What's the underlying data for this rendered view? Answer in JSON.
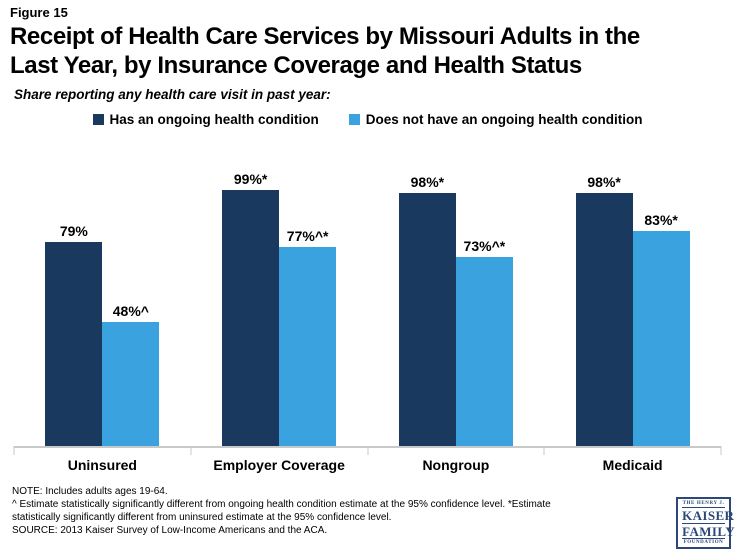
{
  "figure_label": "Figure 15",
  "title_lines": [
    "Receipt of Health Care Services by Missouri Adults in the",
    "Last Year, by Insurance Coverage and Health Status"
  ],
  "subtitle": "Share reporting any health care visit in past year:",
  "chart_data": {
    "type": "bar",
    "title": "Share reporting any health care visit in past year:",
    "categories": [
      "Uninsured",
      "Employer Coverage",
      "Nongroup",
      "Medicaid"
    ],
    "series": [
      {
        "name": "Has an ongoing health condition",
        "color": "#1A395E",
        "values": [
          79,
          99,
          98,
          98
        ],
        "value_labels": [
          "79%",
          "99%*",
          "98%*",
          "98%*"
        ]
      },
      {
        "name": "Does not have an ongoing health condition",
        "color": "#3AA2DE",
        "values": [
          48,
          77,
          73,
          83
        ],
        "value_labels": [
          "48%^",
          "77%^*",
          "73%^*",
          "83%*"
        ]
      }
    ],
    "xlabel": "",
    "ylabel": "",
    "ylim": [
      0,
      100
    ],
    "grid": false,
    "y_axis_visible": false,
    "legend_position": "top",
    "axis_color": "#C9C9C9"
  },
  "notes": {
    "line1": "NOTE: Includes adults ages 19-64.",
    "line2": "^ Estimate statistically significantly different from ongoing health condition estimate  at the 95% confidence level. *Estimate",
    "line3": "statistically significantly different from uninsured estimate at the 95% confidence level.",
    "line4": "SOURCE: 2013 Kaiser Survey of Low-Income Americans and the ACA."
  },
  "logo": {
    "line1": "THE HENRY J.",
    "line2": "KAISER",
    "line3": "FAMILY",
    "line4": "FOUNDATION"
  }
}
